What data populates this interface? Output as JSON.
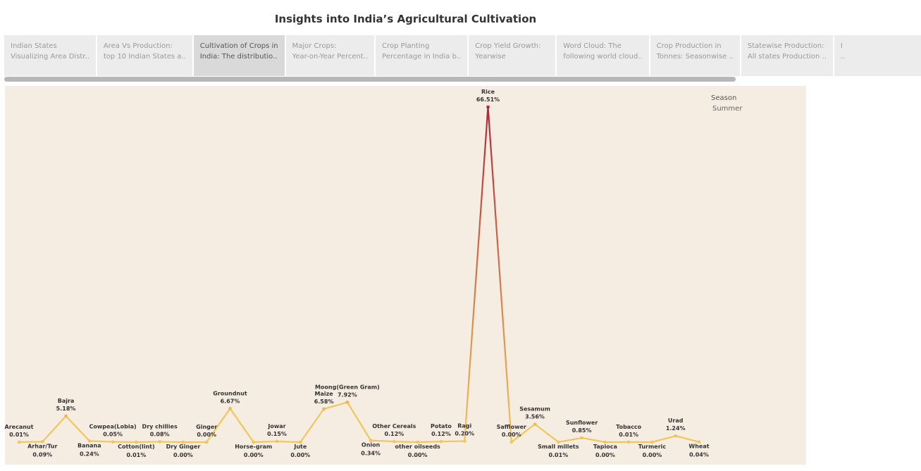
{
  "title": "Insights into India’s Agricultural Cultivation",
  "tabs": [
    {
      "line1": "Indian States",
      "line2": "Visualizing Area Distr..",
      "active": false
    },
    {
      "line1": "Area Vs Production:",
      "line2": "top 10 Indian States a..",
      "active": false
    },
    {
      "line1": "Cultivation of Crops in",
      "line2": "India: The distributio..",
      "active": true
    },
    {
      "line1": "Major Crops:",
      "line2": "Year-on-Year Percent..",
      "active": false
    },
    {
      "line1": "Crop Planting",
      "line2": "Percentage in India b..",
      "active": false
    },
    {
      "line1": "Crop Yield Growth:",
      "line2": "Yearwise",
      "active": false
    },
    {
      "line1": "Word Cloud: The",
      "line2": "following world cloud..",
      "active": false
    },
    {
      "line1": "Crop Production in",
      "line2": "Tonnes: Seasonwise ..",
      "active": false
    },
    {
      "line1": "Statewise Production:",
      "line2": "All states Production ..",
      "active": false
    },
    {
      "line1": "I",
      "line2": "..",
      "active": false
    }
  ],
  "legend": {
    "title": "Season",
    "value": "Summer"
  },
  "colors": {
    "low": "#f2c65a",
    "high": "#b3243a",
    "background": "#f6ede2"
  },
  "chart_data": {
    "type": "line",
    "series": [
      {
        "name": "Summer",
        "points": [
          {
            "crop": "Arecanut",
            "value": 0.01,
            "label": "0.01%",
            "pos": "above"
          },
          {
            "crop": "Arhar/Tur",
            "value": 0.09,
            "label": "0.09%",
            "pos": "below"
          },
          {
            "crop": "Bajra",
            "value": 5.18,
            "label": "5.18%",
            "pos": "above"
          },
          {
            "crop": "Banana",
            "value": 0.24,
            "label": "0.24%",
            "pos": "below"
          },
          {
            "crop": "Cowpea(Lobia)",
            "value": 0.05,
            "label": "0.05%",
            "pos": "above"
          },
          {
            "crop": "Cotton(lint)",
            "value": 0.01,
            "label": "0.01%",
            "pos": "below"
          },
          {
            "crop": "Dry chillies",
            "value": 0.08,
            "label": "0.08%",
            "pos": "above"
          },
          {
            "crop": "Dry Ginger",
            "value": 0.0,
            "label": "0.00%",
            "pos": "below"
          },
          {
            "crop": "Ginger",
            "value": 0.0,
            "label": "0.00%",
            "pos": "above"
          },
          {
            "crop": "Groundnut",
            "value": 6.67,
            "label": "6.67%",
            "pos": "above"
          },
          {
            "crop": "Horse-gram",
            "value": 0.0,
            "label": "0.00%",
            "pos": "below"
          },
          {
            "crop": "Jowar",
            "value": 0.15,
            "label": "0.15%",
            "pos": "above"
          },
          {
            "crop": "Jute",
            "value": 0.0,
            "label": "0.00%",
            "pos": "below"
          },
          {
            "crop": "Maize",
            "value": 6.58,
            "label": "6.58%",
            "pos": "above"
          },
          {
            "crop": "Moong(Green Gram)",
            "value": 7.92,
            "label": "7.92%",
            "pos": "above"
          },
          {
            "crop": "Onion",
            "value": 0.34,
            "label": "0.34%",
            "pos": "below"
          },
          {
            "crop": "Other Cereals",
            "value": 0.12,
            "label": "0.12%",
            "pos": "above"
          },
          {
            "crop": "other oilseeds",
            "value": 0.0,
            "label": "0.00%",
            "pos": "below"
          },
          {
            "crop": "Potato",
            "value": 0.12,
            "label": "0.12%",
            "pos": "above"
          },
          {
            "crop": "Ragi",
            "value": 0.2,
            "label": "0.20%",
            "pos": "above"
          },
          {
            "crop": "Rice",
            "value": 66.51,
            "label": "66.51%",
            "pos": "above"
          },
          {
            "crop": "Safflower",
            "value": 0.0,
            "label": "0.00%",
            "pos": "above"
          },
          {
            "crop": "Sesamum",
            "value": 3.56,
            "label": "3.56%",
            "pos": "above"
          },
          {
            "crop": "Small millets",
            "value": 0.01,
            "label": "0.01%",
            "pos": "below"
          },
          {
            "crop": "Sunflower",
            "value": 0.85,
            "label": "0.85%",
            "pos": "above"
          },
          {
            "crop": "Tapioca",
            "value": 0.0,
            "label": "0.00%",
            "pos": "below"
          },
          {
            "crop": "Tobacco",
            "value": 0.01,
            "label": "0.01%",
            "pos": "above"
          },
          {
            "crop": "Turmeric",
            "value": 0.0,
            "label": "0.00%",
            "pos": "below"
          },
          {
            "crop": "Urad",
            "value": 1.24,
            "label": "1.24%",
            "pos": "above"
          },
          {
            "crop": "Wheat",
            "value": 0.04,
            "label": "0.04%",
            "pos": "below"
          }
        ]
      }
    ],
    "xlabel": "",
    "ylabel": "",
    "ylim": [
      0,
      66.51
    ],
    "grid": false,
    "legend_position": "top-right"
  }
}
